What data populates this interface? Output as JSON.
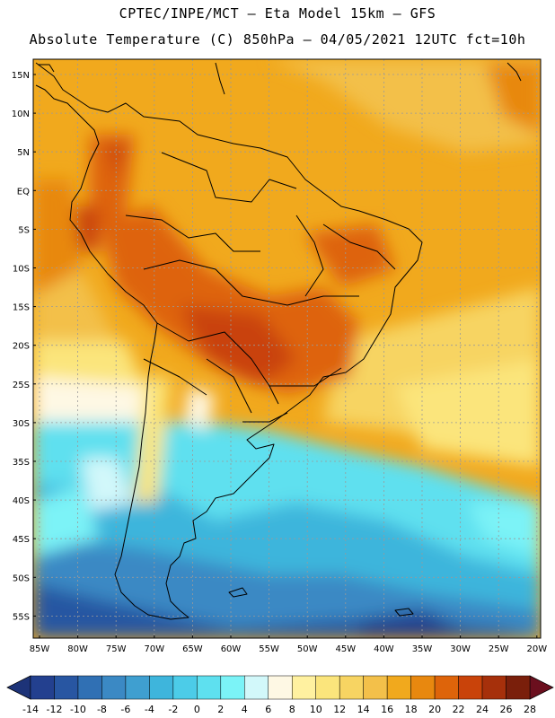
{
  "header": {
    "line1": "CPTEC/INPE/MCT –  Eta Model 15km – GFS",
    "line2": "Absolute Temperature (C) 850hPa – 04/05/2021 12UTC fct=10h"
  },
  "map": {
    "lat_labels": [
      "15N",
      "10N",
      "5N",
      "EQ",
      "5S",
      "10S",
      "15S",
      "20S",
      "25S",
      "30S",
      "35S",
      "40S",
      "45S",
      "50S",
      "55S"
    ],
    "lon_labels": [
      "85W",
      "80W",
      "75W",
      "70W",
      "65W",
      "60W",
      "55W",
      "50W",
      "45W",
      "40W",
      "35W",
      "30W",
      "25W",
      "20W"
    ]
  },
  "colorbar": {
    "labels": [
      "-14",
      "-12",
      "-10",
      "-8",
      "-6",
      "-4",
      "-2",
      "0",
      "2",
      "4",
      "6",
      "8",
      "10",
      "12",
      "14",
      "16",
      "18",
      "20",
      "22",
      "24",
      "26",
      "28"
    ],
    "colors": [
      "#23408f",
      "#2856a2",
      "#3070b4",
      "#3b89c4",
      "#3f9fd0",
      "#3eb5dc",
      "#4ccce8",
      "#5ee0ef",
      "#7bf3f7",
      "#d2f8fa",
      "#fef8e4",
      "#fff1a0",
      "#fbe57c",
      "#f7d462",
      "#f3c04a",
      "#f1a91d",
      "#e8880f",
      "#de640a",
      "#c9430a",
      "#a6300b",
      "#7a1f0b"
    ],
    "low_color": "#1d3378",
    "high_color": "#6b0f1e"
  }
}
